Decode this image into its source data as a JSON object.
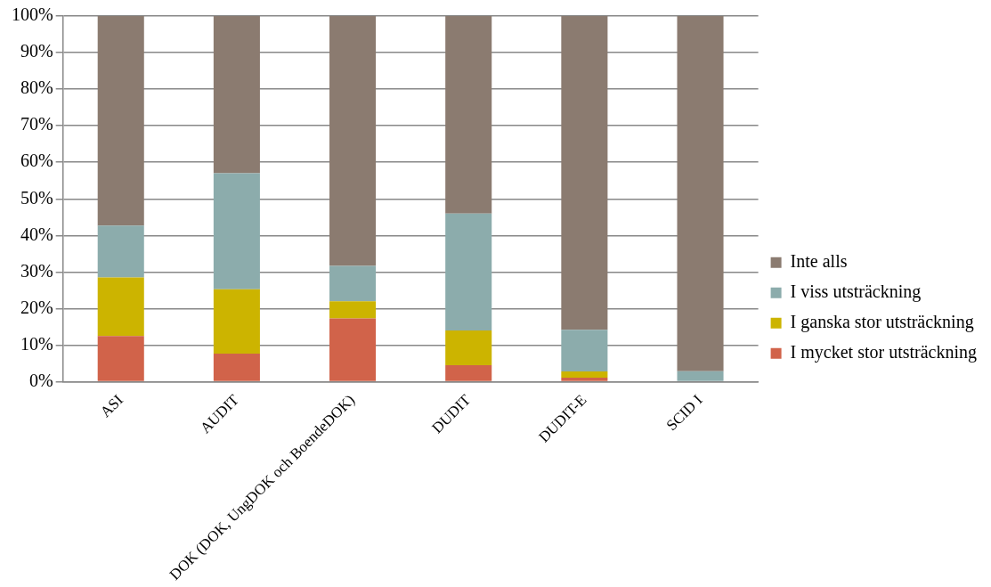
{
  "chart_data": {
    "type": "bar",
    "stacked": true,
    "categories": [
      "ASI",
      "AUDIT",
      "DOK (DOK, UngDOK och BoendeDOK)",
      "DUDIT",
      "DUDIT-E",
      "SCID I"
    ],
    "series": [
      {
        "name": "I mycket stor utsträckning",
        "color": "#d1634a",
        "values": [
          12.5,
          7.7,
          17.3,
          4.5,
          1.1,
          0
        ]
      },
      {
        "name": "I ganska stor utsträckning",
        "color": "#ccb400",
        "values": [
          16,
          17.6,
          4.7,
          9.5,
          1.7,
          0
        ]
      },
      {
        "name": "I viss utsträckning",
        "color": "#8cacac",
        "values": [
          14.2,
          31.7,
          9.7,
          32,
          11.4,
          2.9
        ]
      },
      {
        "name": "Inte alls",
        "color": "#8b7b70",
        "values": [
          57.3,
          43,
          68.3,
          54,
          85.8,
          97.1
        ]
      }
    ],
    "ylim": [
      0,
      100
    ],
    "yticks": [
      {
        "value": 0,
        "label": "0%"
      },
      {
        "value": 10,
        "label": "10%"
      },
      {
        "value": 20,
        "label": "20%"
      },
      {
        "value": 30,
        "label": "30%"
      },
      {
        "value": 40,
        "label": "40%"
      },
      {
        "value": 50,
        "label": "50%"
      },
      {
        "value": 60,
        "label": "60%"
      },
      {
        "value": 70,
        "label": "70%"
      },
      {
        "value": 80,
        "label": "80%"
      },
      {
        "value": 90,
        "label": "90%"
      },
      {
        "value": 100,
        "label": "100%"
      }
    ],
    "grid": "y",
    "legend": "right"
  }
}
